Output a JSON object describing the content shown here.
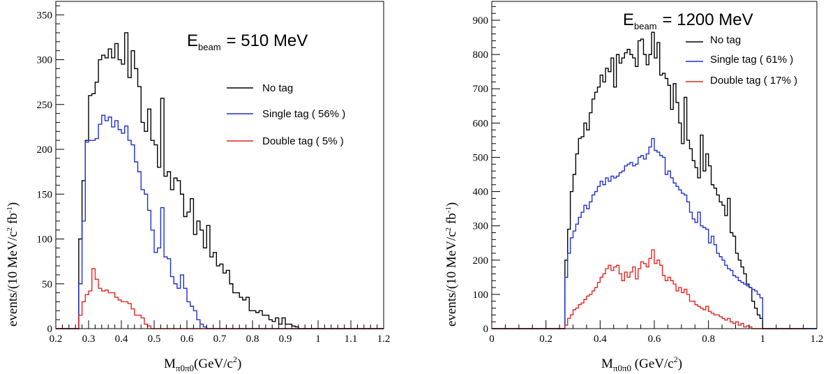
{
  "chart_data": [
    {
      "type": "line",
      "title": "",
      "ebeam_label": {
        "e": "E",
        "sub": "beam",
        "value": "=  510 MeV"
      },
      "xlabel": {
        "main": "M",
        "sub": "π0π0",
        "unit": "(GeV/c",
        "sup": "2",
        "close": ")"
      },
      "ylabel": {
        "a": "events/(10 MeV/c",
        "s1": "2",
        "b": " fb",
        "s2": "-1",
        "c": ")"
      },
      "xlim": [
        0.2,
        1.2
      ],
      "ylim": [
        0,
        365
      ],
      "xticks": [
        0.2,
        0.3,
        0.4,
        0.5,
        0.6,
        0.7,
        0.8,
        0.9,
        1.0,
        1.1,
        1.2
      ],
      "xtick_labels": [
        "0.2",
        "0.3",
        "0.4",
        "0.5",
        "0.6",
        "0.7",
        "0.8",
        "0.9",
        "1",
        "1.1",
        "1.2"
      ],
      "yticks": [
        0,
        50,
        100,
        150,
        200,
        250,
        300,
        350
      ],
      "ytick_labels": [
        "0",
        "50",
        "100",
        "150",
        "200",
        "250",
        "300",
        "350"
      ],
      "legend_position": "top-right",
      "bin_start": 0.2,
      "bin_width": 0.01,
      "series": [
        {
          "name": "No tag",
          "color": "#000000",
          "values": [
            0,
            0,
            0,
            0,
            0,
            0,
            0,
            100,
            165,
            210,
            260,
            262,
            275,
            300,
            305,
            302,
            312,
            302,
            318,
            300,
            295,
            330,
            280,
            310,
            290,
            270,
            230,
            220,
            245,
            210,
            205,
            180,
            257,
            170,
            175,
            155,
            168,
            165,
            150,
            125,
            130,
            145,
            105,
            120,
            110,
            90,
            115,
            80,
            85,
            70,
            72,
            62,
            65,
            50,
            40,
            40,
            35,
            32,
            35,
            20,
            20,
            18,
            20,
            15,
            15,
            10,
            8,
            12,
            5,
            12,
            5,
            5,
            3,
            2,
            0,
            0,
            0,
            0,
            0,
            0,
            0,
            0,
            0,
            0,
            0,
            0,
            0,
            0,
            0,
            0,
            0,
            0,
            0,
            0,
            0,
            0,
            0,
            0,
            0,
            0
          ]
        },
        {
          "name": "Single tag ( 56% )",
          "color": "#1f2ed6",
          "values": [
            0,
            0,
            0,
            0,
            0,
            0,
            0,
            50,
            120,
            208,
            210,
            210,
            212,
            228,
            238,
            232,
            236,
            225,
            232,
            222,
            218,
            226,
            210,
            205,
            186,
            175,
            155,
            150,
            132,
            110,
            85,
            90,
            135,
            80,
            78,
            58,
            50,
            45,
            60,
            45,
            30,
            25,
            20,
            10,
            5,
            2,
            0,
            0,
            0,
            0,
            0,
            0,
            0,
            0,
            0,
            0,
            0,
            0,
            0,
            0,
            0,
            0,
            0,
            0,
            0,
            0,
            0,
            0,
            0,
            0,
            0,
            0,
            0,
            0,
            0,
            0,
            0,
            0,
            0,
            0,
            0,
            0,
            0,
            0,
            0,
            0,
            0,
            0,
            0,
            0,
            0,
            0,
            0,
            0,
            0,
            0,
            0,
            0,
            0,
            0
          ]
        },
        {
          "name": "Double tag ( 5% )",
          "color": "#e8231f",
          "values": [
            0,
            0,
            0,
            0,
            0,
            0,
            0,
            15,
            30,
            38,
            42,
            67,
            55,
            45,
            42,
            43,
            40,
            40,
            35,
            32,
            30,
            30,
            28,
            22,
            15,
            15,
            12,
            5,
            3,
            0,
            0,
            0,
            0,
            0,
            0,
            0,
            0,
            0,
            0,
            0,
            0,
            0,
            0,
            0,
            0,
            0,
            0,
            0,
            0,
            0,
            0,
            0,
            0,
            0,
            0,
            0,
            0,
            0,
            0,
            0,
            0,
            0,
            0,
            0,
            0,
            0,
            0,
            0,
            0,
            0,
            0,
            0,
            0,
            0,
            0,
            0,
            0,
            0,
            0,
            0,
            0,
            0,
            0,
            0,
            0,
            0,
            0,
            0,
            0,
            0,
            0,
            0,
            0,
            0,
            0,
            0,
            0,
            0,
            0,
            0
          ]
        }
      ]
    },
    {
      "type": "line",
      "title": "",
      "ebeam_label": {
        "e": "E",
        "sub": "beam",
        "value": "=  1200 MeV"
      },
      "xlabel": {
        "main": "M",
        "sub": "π0π0",
        "unit": " (GeV/c",
        "sup": "2",
        "close": ")"
      },
      "ylabel": {
        "a": "events/(10 MeV/c",
        "s1": "2",
        "b": " fb",
        "s2": "-1",
        "c": ")"
      },
      "xlim": [
        0,
        1.2
      ],
      "ylim": [
        0,
        955
      ],
      "xticks": [
        0,
        0.2,
        0.4,
        0.6,
        0.8,
        1.0,
        1.2
      ],
      "xtick_labels": [
        "0",
        "0.2",
        "0.4",
        "0.6",
        "0.8",
        "1",
        "1.2"
      ],
      "yticks": [
        0,
        100,
        200,
        300,
        400,
        500,
        600,
        700,
        800,
        900
      ],
      "ytick_labels": [
        "0",
        "100",
        "200",
        "300",
        "400",
        "500",
        "600",
        "700",
        "800",
        "900"
      ],
      "legend_position": "top-right",
      "bin_start": 0.0,
      "bin_width": 0.01,
      "series": [
        {
          "name": "No tag",
          "color": "#000000",
          "values": [
            0,
            0,
            0,
            0,
            0,
            0,
            0,
            0,
            0,
            0,
            0,
            0,
            0,
            0,
            0,
            0,
            0,
            0,
            0,
            0,
            0,
            0,
            0,
            0,
            0,
            0,
            0,
            200,
            290,
            400,
            450,
            510,
            555,
            560,
            600,
            580,
            630,
            670,
            690,
            705,
            740,
            720,
            760,
            750,
            790,
            705,
            800,
            775,
            790,
            805,
            815,
            800,
            790,
            765,
            840,
            845,
            800,
            770,
            800,
            865,
            790,
            835,
            740,
            745,
            730,
            710,
            640,
            715,
            660,
            600,
            540,
            675,
            550,
            525,
            490,
            470,
            440,
            565,
            460,
            510,
            475,
            420,
            410,
            390,
            370,
            360,
            330,
            380,
            280,
            270,
            220,
            200,
            180,
            160,
            130,
            120,
            80,
            60,
            40,
            30,
            0,
            0,
            0,
            0,
            0,
            0,
            0,
            0,
            0,
            0,
            0,
            0,
            0,
            0,
            0,
            0,
            0,
            0,
            0,
            0
          ]
        },
        {
          "name": "Single tag ( 61% )",
          "color": "#1f2ed6",
          "values": [
            0,
            0,
            0,
            0,
            0,
            0,
            0,
            0,
            0,
            0,
            0,
            0,
            0,
            0,
            0,
            0,
            0,
            0,
            0,
            0,
            0,
            0,
            0,
            0,
            0,
            0,
            0,
            150,
            220,
            265,
            285,
            305,
            325,
            340,
            360,
            350,
            370,
            390,
            400,
            415,
            430,
            420,
            440,
            430,
            445,
            440,
            445,
            455,
            460,
            475,
            480,
            485,
            475,
            480,
            500,
            505,
            495,
            510,
            530,
            555,
            520,
            515,
            505,
            500,
            450,
            460,
            440,
            425,
            415,
            405,
            395,
            390,
            370,
            340,
            320,
            310,
            340,
            300,
            295,
            290,
            250,
            270,
            245,
            220,
            210,
            200,
            185,
            175,
            170,
            155,
            150,
            140,
            135,
            130,
            125,
            120,
            115,
            110,
            100,
            90,
            0,
            0,
            0,
            0,
            0,
            0,
            0,
            0,
            0,
            0,
            0,
            0,
            0,
            0,
            0,
            0,
            0,
            0,
            0,
            0
          ]
        },
        {
          "name": "Double tag ( 17% )",
          "color": "#e8231f",
          "values": [
            0,
            0,
            0,
            0,
            0,
            0,
            0,
            0,
            0,
            0,
            0,
            0,
            0,
            0,
            0,
            0,
            0,
            0,
            0,
            0,
            0,
            0,
            0,
            0,
            0,
            0,
            0,
            10,
            30,
            40,
            55,
            60,
            70,
            75,
            85,
            95,
            100,
            110,
            120,
            135,
            150,
            160,
            175,
            185,
            170,
            180,
            185,
            160,
            140,
            165,
            150,
            165,
            180,
            145,
            175,
            195,
            190,
            180,
            205,
            230,
            190,
            200,
            185,
            155,
            140,
            150,
            140,
            130,
            110,
            120,
            105,
            115,
            100,
            80,
            80,
            70,
            65,
            60,
            55,
            65,
            50,
            45,
            40,
            40,
            35,
            30,
            25,
            30,
            20,
            15,
            20,
            10,
            15,
            5,
            8,
            5,
            0,
            0,
            0,
            0,
            0,
            0,
            0,
            0,
            0,
            0,
            0,
            0,
            0,
            0,
            0,
            0,
            0,
            0,
            0,
            0
          ]
        }
      ]
    }
  ]
}
